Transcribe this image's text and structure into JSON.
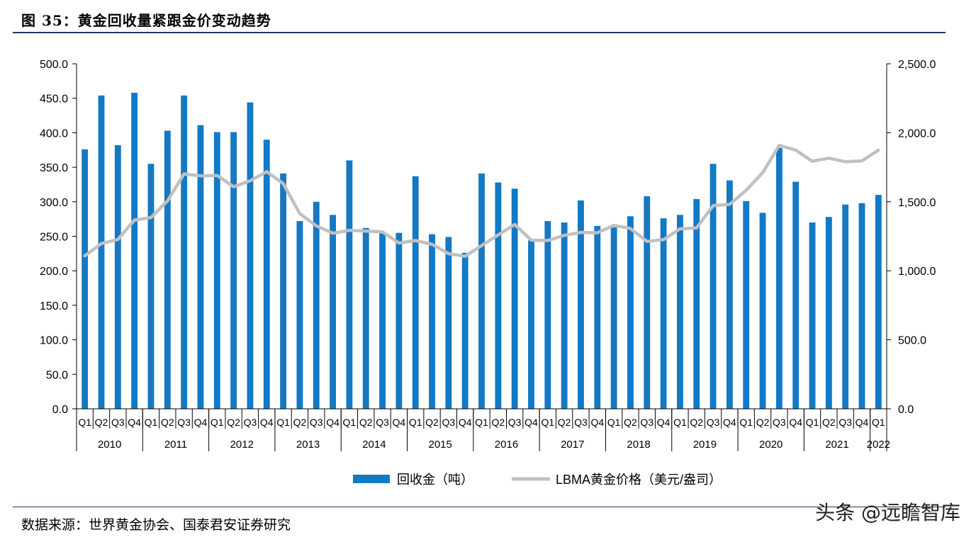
{
  "title": "图 35：黄金回收量紧跟金价变动趋势",
  "source": "数据来源：世界黄金协会、国泰君安证券研究",
  "watermark": "头条 @远瞻智库",
  "colors": {
    "bar": "#1479c4",
    "line": "#c0c0c0",
    "axis": "#000000",
    "rule": "#1f3864"
  },
  "chart_data": {
    "type": "bar",
    "years": [
      "2010",
      "2011",
      "2012",
      "2013",
      "2014",
      "2015",
      "2016",
      "2017",
      "2018",
      "2019",
      "2020",
      "2021",
      "2022"
    ],
    "categories": [
      "Q1",
      "Q2",
      "Q3",
      "Q4",
      "Q1",
      "Q2",
      "Q3",
      "Q4",
      "Q1",
      "Q2",
      "Q3",
      "Q4",
      "Q1",
      "Q2",
      "Q3",
      "Q4",
      "Q1",
      "Q2",
      "Q3",
      "Q4",
      "Q1",
      "Q2",
      "Q3",
      "Q4",
      "Q1",
      "Q2",
      "Q3",
      "Q4",
      "Q1",
      "Q2",
      "Q3",
      "Q4",
      "Q1",
      "Q2",
      "Q3",
      "Q4",
      "Q1",
      "Q2",
      "Q3",
      "Q4",
      "Q1",
      "Q2",
      "Q3",
      "Q4",
      "Q1",
      "Q2",
      "Q3",
      "Q4",
      "Q1"
    ],
    "year_of_category": [
      "2010",
      "2010",
      "2010",
      "2010",
      "2011",
      "2011",
      "2011",
      "2011",
      "2012",
      "2012",
      "2012",
      "2012",
      "2013",
      "2013",
      "2013",
      "2013",
      "2014",
      "2014",
      "2014",
      "2014",
      "2015",
      "2015",
      "2015",
      "2015",
      "2016",
      "2016",
      "2016",
      "2016",
      "2017",
      "2017",
      "2017",
      "2017",
      "2018",
      "2018",
      "2018",
      "2018",
      "2019",
      "2019",
      "2019",
      "2019",
      "2020",
      "2020",
      "2020",
      "2020",
      "2021",
      "2021",
      "2021",
      "2021",
      "2022"
    ],
    "series": [
      {
        "name": "回收金（吨）",
        "type": "bar",
        "axis": "left",
        "values": [
          376,
          454,
          382,
          458,
          355,
          403,
          454,
          411,
          401,
          401,
          444,
          390,
          341,
          272,
          300,
          281,
          360,
          262,
          255,
          255,
          337,
          253,
          249,
          226,
          341,
          328,
          319,
          244,
          272,
          270,
          302,
          265,
          263,
          279,
          308,
          276,
          281,
          304,
          355,
          331,
          301,
          284,
          378,
          329,
          270,
          278,
          296,
          298,
          310
        ]
      },
      {
        "name": "LBMA黄金价格（美元/盎司）",
        "type": "line",
        "axis": "right",
        "values": [
          1109,
          1197,
          1227,
          1367,
          1386,
          1506,
          1702,
          1688,
          1691,
          1609,
          1652,
          1718,
          1632,
          1415,
          1326,
          1272,
          1293,
          1288,
          1282,
          1201,
          1219,
          1192,
          1124,
          1105,
          1183,
          1260,
          1335,
          1222,
          1219,
          1257,
          1278,
          1275,
          1329,
          1306,
          1213,
          1226,
          1304,
          1310,
          1472,
          1481,
          1583,
          1711,
          1909,
          1874,
          1794,
          1816,
          1790,
          1796,
          1874
        ]
      }
    ],
    "y_left": {
      "min": 0,
      "max": 500,
      "step": 50,
      "tick_labels": [
        "0.0",
        "50.0",
        "100.0",
        "150.0",
        "200.0",
        "250.0",
        "300.0",
        "350.0",
        "400.0",
        "450.0",
        "500.0"
      ]
    },
    "y_right": {
      "min": 0,
      "max": 2500,
      "step": 500,
      "tick_labels": [
        "0.0",
        "500.0",
        "1,000.0",
        "1,500.0",
        "2,000.0",
        "2,500.0"
      ]
    },
    "grid": false,
    "legend_placement": "bottom-center",
    "legend": [
      {
        "label": "回收金（吨）",
        "kind": "bar"
      },
      {
        "label": "LBMA黄金价格（美元/盎司）",
        "kind": "line"
      }
    ]
  }
}
